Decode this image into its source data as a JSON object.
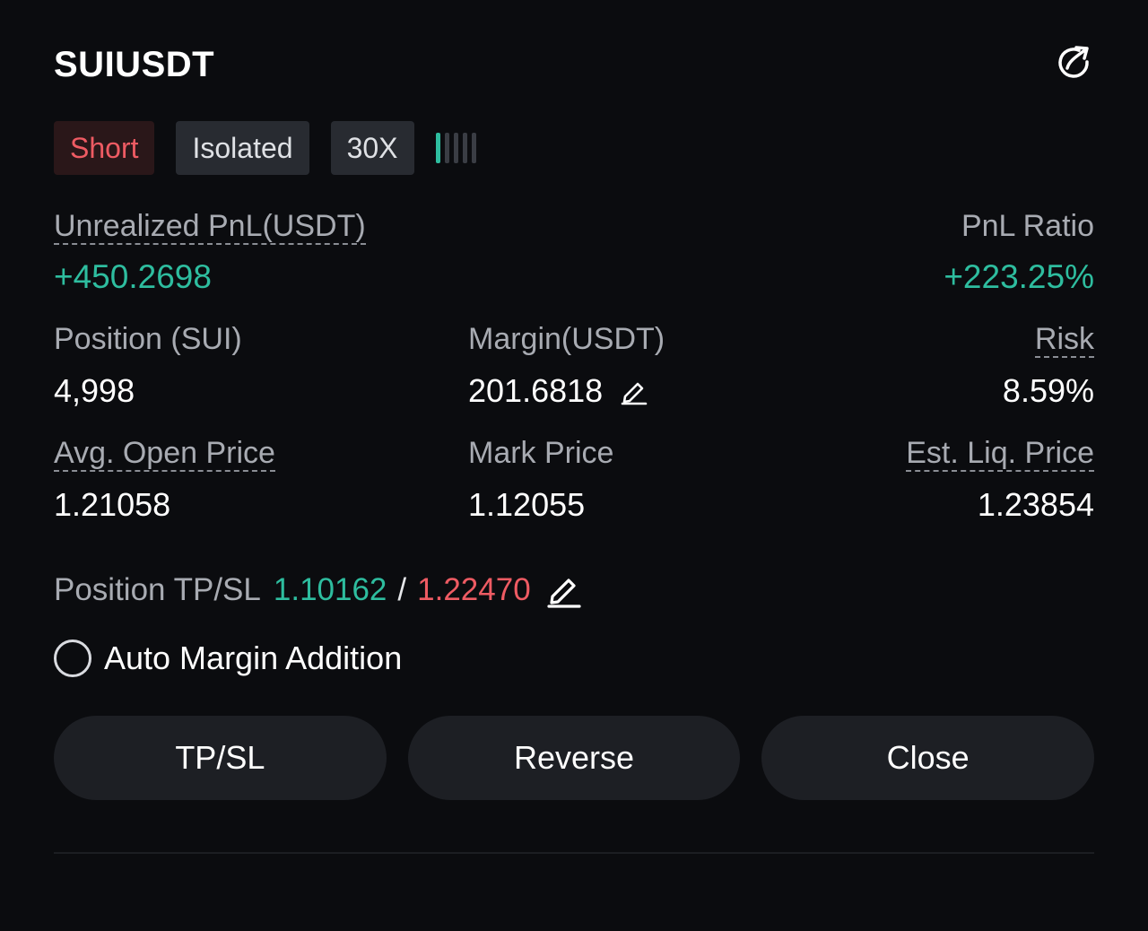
{
  "position": {
    "symbol": "SUIUSDT",
    "side": "Short",
    "margin_mode": "Isolated",
    "leverage": "30X",
    "risk_level": 0.2
  },
  "colors": {
    "profit": "#2ebd9f",
    "loss": "#ee5b63",
    "background": "#0b0c0f",
    "button": "#1d1f24"
  },
  "icons": {
    "share": "share-icon",
    "edit": "pencil-icon",
    "radio": "radio-unchecked-icon"
  },
  "stats": {
    "unrealized_pnl": {
      "label": "Unrealized PnL(USDT)",
      "value": "+450.2698"
    },
    "pnl_ratio": {
      "label": "PnL Ratio",
      "value": "+223.25%"
    },
    "position_size": {
      "label": "Position (SUI)",
      "value": "4,998"
    },
    "margin": {
      "label": "Margin(USDT)",
      "value": "201.6818"
    },
    "risk": {
      "label": "Risk",
      "value": "8.59%"
    },
    "avg_open_price": {
      "label": "Avg. Open Price",
      "value": "1.21058"
    },
    "mark_price": {
      "label": "Mark Price",
      "value": "1.12055"
    },
    "est_liq_price": {
      "label": "Est. Liq. Price",
      "value": "1.23854"
    }
  },
  "tpsl": {
    "label": "Position TP/SL",
    "tp": "1.10162",
    "separator": "/",
    "sl": "1.22470"
  },
  "auto_margin": {
    "label": "Auto Margin Addition",
    "checked": false
  },
  "actions": {
    "tpsl_label": "TP/SL",
    "reverse_label": "Reverse",
    "close_label": "Close"
  }
}
